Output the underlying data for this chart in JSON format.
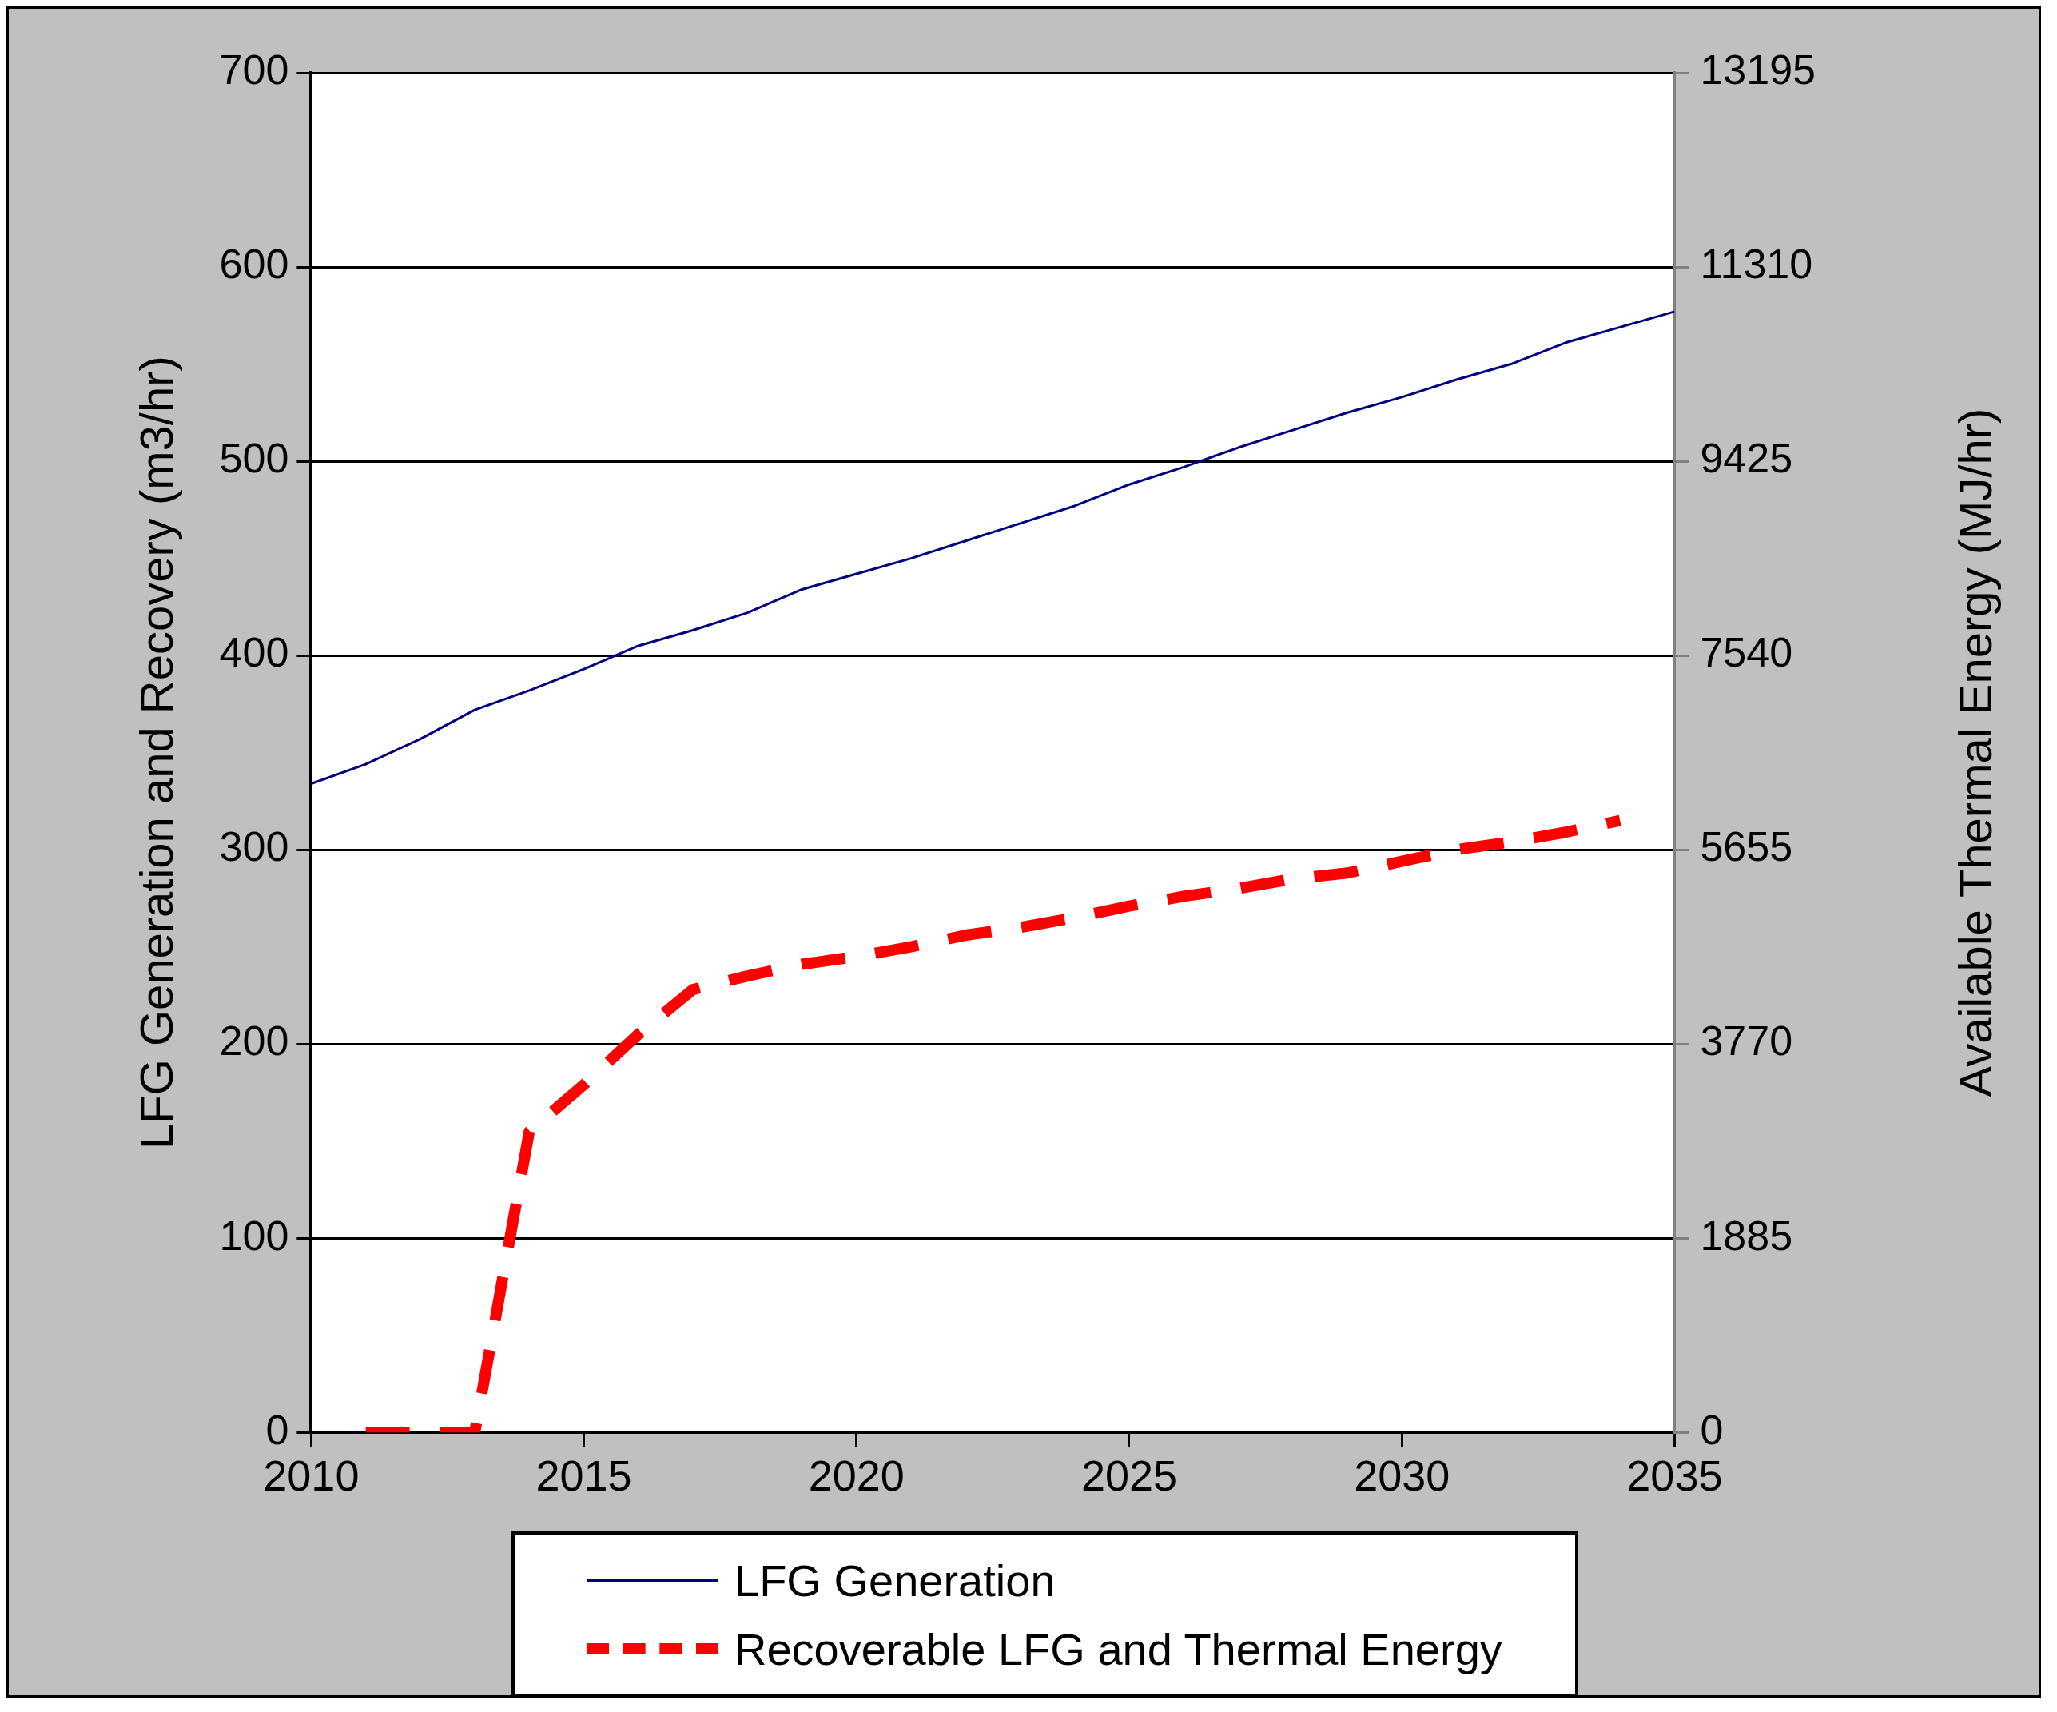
{
  "chart_data": {
    "type": "line",
    "xlabel": null,
    "ylabel": "LFG Generation and Recovery (m3/hr)",
    "y2label": "Available Thermal Energy (MJ/hr)",
    "x": [
      2010,
      2011,
      2012,
      2013,
      2014,
      2015,
      2016,
      2017,
      2018,
      2019,
      2020,
      2021,
      2022,
      2023,
      2024,
      2025,
      2026,
      2027,
      2028,
      2029,
      2030,
      2031,
      2032,
      2033,
      2034,
      2035
    ],
    "series": [
      {
        "name": "LFG Generation",
        "color": "#000080",
        "line_style": "solid",
        "values": [
          334,
          344,
          357,
          372,
          382,
          393,
          405,
          413,
          422,
          434,
          442,
          450,
          459,
          468,
          477,
          488,
          497,
          507,
          516,
          525,
          533,
          542,
          550,
          561,
          569,
          577
        ]
      },
      {
        "name": "Recoverable LFG and Thermal Energy",
        "color": "#ff0000",
        "line_style": "dashed",
        "values": [
          null,
          0,
          0,
          0,
          155,
          179,
          205,
          228,
          235,
          241,
          245,
          250,
          256,
          260,
          265,
          271,
          276,
          280,
          285,
          288,
          294,
          300,
          304,
          309,
          315,
          null
        ]
      }
    ],
    "xlim": [
      2010,
      2035
    ],
    "xticks": [
      2010,
      2015,
      2020,
      2025,
      2030,
      2035
    ],
    "ylim": [
      0,
      700
    ],
    "yticks": [
      0,
      100,
      200,
      300,
      400,
      500,
      600,
      700
    ],
    "y2lim": [
      0,
      13195
    ],
    "y2ticks": [
      0,
      1885,
      3770,
      5655,
      7540,
      9425,
      11310,
      13195
    ],
    "grid": "y",
    "legend": "bottom",
    "marker": "none"
  }
}
